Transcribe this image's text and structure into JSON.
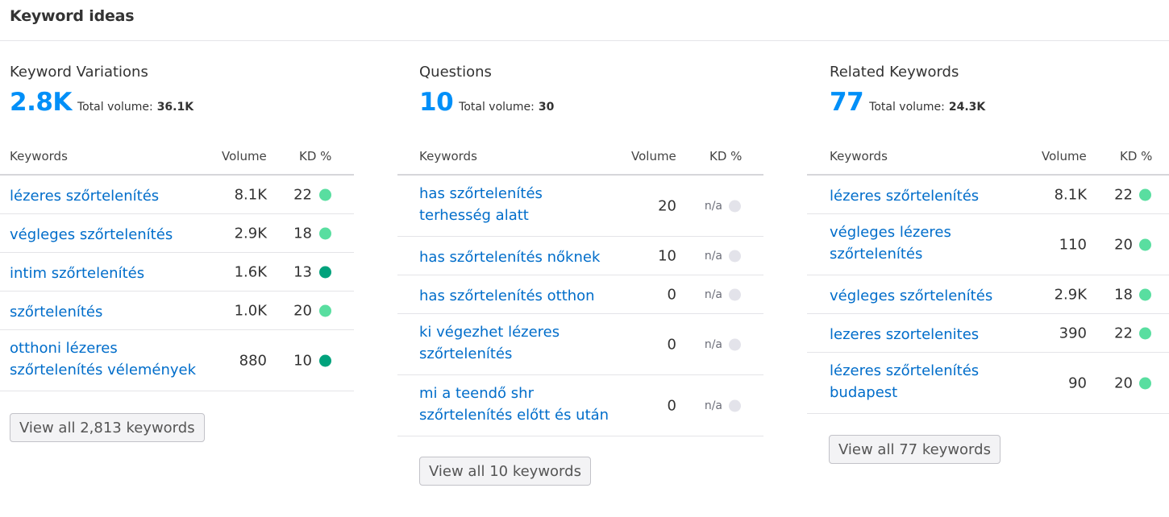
{
  "header": {
    "title": "Keyword ideas"
  },
  "columns": {
    "headers": {
      "keywords": "Keywords",
      "volume": "Volume",
      "kd": "KD %"
    },
    "colors": {
      "kd_light": "#59dea0",
      "kd_dark": "#00a27c",
      "kd_na": "#e3e3ea",
      "link": "#006dca",
      "accent": "#008ff8"
    }
  },
  "variations": {
    "title": "Keyword Variations",
    "count": "2.8K",
    "total_label": "Total volume:",
    "total_value": "36.1K",
    "rows": [
      {
        "keyword": "lézeres szőrtelenítés",
        "volume": "8.1K",
        "kd": "22",
        "kd_level": "light"
      },
      {
        "keyword": "végleges szőrtelenítés",
        "volume": "2.9K",
        "kd": "18",
        "kd_level": "light"
      },
      {
        "keyword": "intim szőrtelenítés",
        "volume": "1.6K",
        "kd": "13",
        "kd_level": "dark"
      },
      {
        "keyword": "szőrtelenítés",
        "volume": "1.0K",
        "kd": "20",
        "kd_level": "light"
      },
      {
        "keyword": "otthoni lézeres szőrtelenítés vélemények",
        "volume": "880",
        "kd": "10",
        "kd_level": "dark"
      }
    ],
    "view_all": "View all 2,813 keywords"
  },
  "questions": {
    "title": "Questions",
    "count": "10",
    "total_label": "Total volume:",
    "total_value": "30",
    "rows": [
      {
        "keyword": "has szőrtelenítés terhesség alatt",
        "volume": "20",
        "kd": "n/a",
        "kd_level": "na"
      },
      {
        "keyword": "has szőrtelenítés nőknek",
        "volume": "10",
        "kd": "n/a",
        "kd_level": "na"
      },
      {
        "keyword": "has szőrtelenítés otthon",
        "volume": "0",
        "kd": "n/a",
        "kd_level": "na"
      },
      {
        "keyword": "ki végezhet lézeres szőrtelenítés",
        "volume": "0",
        "kd": "n/a",
        "kd_level": "na"
      },
      {
        "keyword": "mi a teendő shr szőrtelenítés előtt és után",
        "volume": "0",
        "kd": "n/a",
        "kd_level": "na"
      }
    ],
    "view_all": "View all 10 keywords"
  },
  "related": {
    "title": "Related Keywords",
    "count": "77",
    "total_label": "Total volume:",
    "total_value": "24.3K",
    "rows": [
      {
        "keyword": "lézeres szőrtelenítés",
        "volume": "8.1K",
        "kd": "22",
        "kd_level": "light"
      },
      {
        "keyword": "végleges lézeres szőrtelenítés",
        "volume": "110",
        "kd": "20",
        "kd_level": "light"
      },
      {
        "keyword": "végleges szőrtelenítés",
        "volume": "2.9K",
        "kd": "18",
        "kd_level": "light"
      },
      {
        "keyword": "lezeres szortelenites",
        "volume": "390",
        "kd": "22",
        "kd_level": "light"
      },
      {
        "keyword": "lézeres szőrtelenítés budapest",
        "volume": "90",
        "kd": "20",
        "kd_level": "light"
      }
    ],
    "view_all": "View all 77 keywords"
  }
}
